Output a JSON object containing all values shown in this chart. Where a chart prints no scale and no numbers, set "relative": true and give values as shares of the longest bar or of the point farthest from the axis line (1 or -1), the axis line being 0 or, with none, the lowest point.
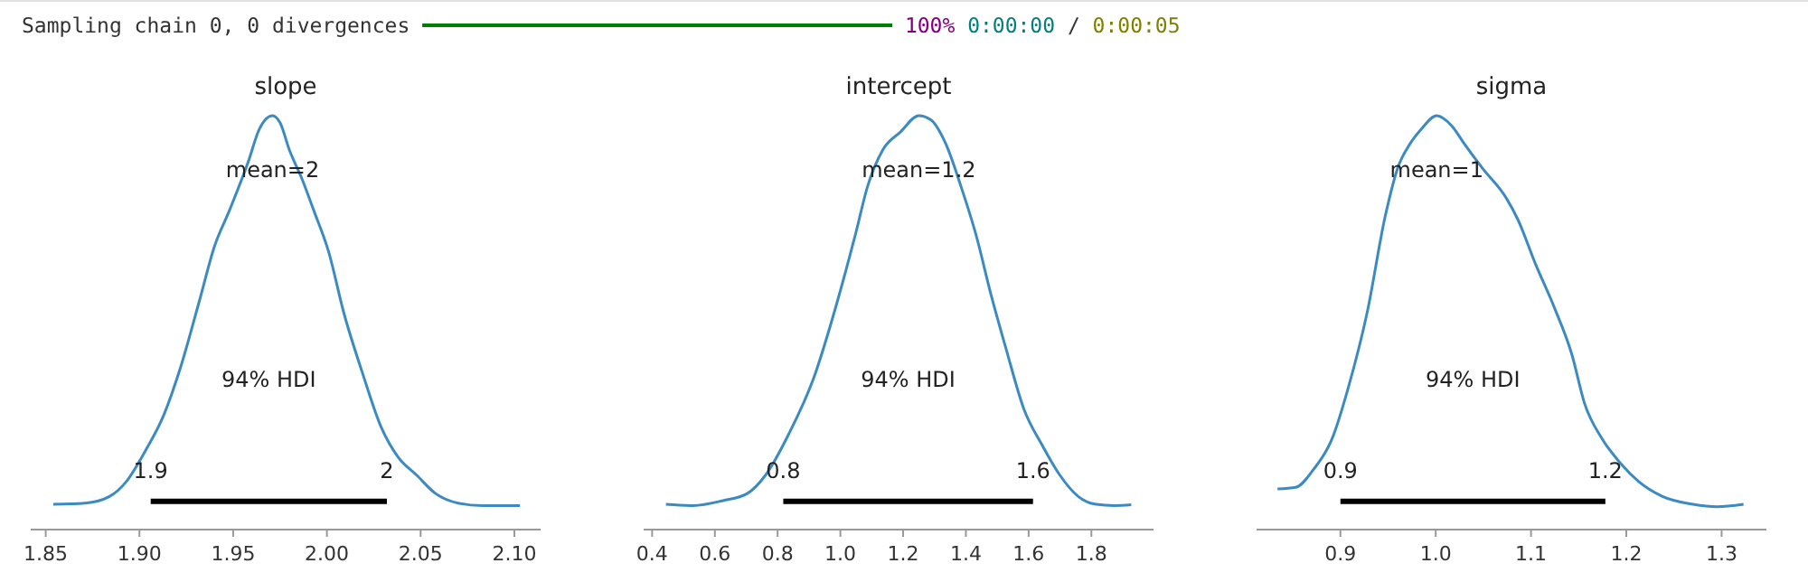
{
  "chart_data": [
    {
      "type": "other",
      "annotations": [
        "Sampling chain 0, 0 divergences",
        "100%",
        "0:00:00",
        "/",
        "0:00:05"
      ]
    },
    {
      "type": "line",
      "title": "slope",
      "relative": true,
      "xlim": [
        1.842,
        2.114
      ],
      "xticks": [
        {
          "value": 1.85,
          "label": "1.85"
        },
        {
          "value": 1.9,
          "label": "1.90"
        },
        {
          "value": 1.95,
          "label": "1.95"
        },
        {
          "value": 2.0,
          "label": "2.00"
        },
        {
          "value": 2.05,
          "label": "2.05"
        },
        {
          "value": 2.1,
          "label": "2.10"
        }
      ],
      "series": [
        {
          "color": "#3b8bc2",
          "x": [
            1.854,
            1.871,
            1.884,
            1.893,
            1.903,
            1.913,
            1.922,
            1.932,
            1.94,
            1.948,
            1.958,
            1.964,
            1.971,
            1.975,
            1.98,
            1.987,
            1.993,
            2.001,
            2.009,
            2.019,
            2.029,
            2.038,
            2.048,
            2.058,
            2.07,
            2.083,
            2.103
          ],
          "values": [
            0.061,
            0.064,
            0.08,
            0.116,
            0.189,
            0.277,
            0.393,
            0.553,
            0.684,
            0.771,
            0.888,
            0.968,
            1,
            0.983,
            0.917,
            0.844,
            0.771,
            0.67,
            0.524,
            0.378,
            0.247,
            0.175,
            0.131,
            0.087,
            0.064,
            0.058,
            0.058
          ]
        },
        {
          "color": "#000000",
          "x": [
            1.906,
            2.032
          ],
          "values": [
            0.068,
            0.068
          ]
        }
      ],
      "annotations": [
        "mean=2",
        "94% HDI",
        "1.9",
        "2"
      ]
    },
    {
      "type": "line",
      "title": "intercept",
      "relative": true,
      "xlim": [
        0.373,
        1.998
      ],
      "xticks": [
        0.4,
        0.6,
        0.8,
        {
          "value": 1.0,
          "label": "1.0"
        },
        1.2,
        1.4,
        1.6,
        1.8
      ],
      "series": [
        {
          "color": "#3b8bc2",
          "x": [
            0.444,
            0.53,
            0.626,
            0.703,
            0.761,
            0.837,
            0.914,
            0.991,
            1.048,
            1.087,
            1.135,
            1.192,
            1.25,
            1.288,
            1.336,
            1.384,
            1.432,
            1.48,
            1.528,
            1.585,
            1.643,
            1.7,
            1.758,
            1.815,
            1.873,
            1.927
          ],
          "values": [
            0.061,
            0.058,
            0.07,
            0.087,
            0.131,
            0.233,
            0.364,
            0.553,
            0.713,
            0.83,
            0.917,
            0.961,
            1,
            0.99,
            0.932,
            0.83,
            0.713,
            0.568,
            0.437,
            0.291,
            0.204,
            0.131,
            0.08,
            0.061,
            0.058,
            0.06
          ]
        },
        {
          "color": "#000000",
          "x": [
            0.818,
            1.614
          ],
          "values": [
            0.068,
            0.068
          ]
        }
      ],
      "annotations": [
        "mean=1.2",
        "94% HDI",
        "0.8",
        "1.6"
      ]
    },
    {
      "type": "line",
      "title": "sigma",
      "relative": true,
      "xlim": [
        0.812,
        1.347
      ],
      "xticks": [
        0.9,
        {
          "value": 1.0,
          "label": "1.0"
        },
        1.1,
        1.2,
        1.3
      ],
      "series": [
        {
          "color": "#3b8bc2",
          "x": [
            0.834,
            0.853,
            0.872,
            0.891,
            0.909,
            0.928,
            0.947,
            0.96,
            0.973,
            0.985,
            1.001,
            1.017,
            1.03,
            1.049,
            1.074,
            1.086,
            1.105,
            1.124,
            1.143,
            1.156,
            1.175,
            1.194,
            1.213,
            1.238,
            1.27,
            1.295,
            1.323
          ],
          "values": [
            0.098,
            0.102,
            0.146,
            0.218,
            0.349,
            0.524,
            0.757,
            0.873,
            0.932,
            0.968,
            1,
            0.975,
            0.932,
            0.873,
            0.801,
            0.75,
            0.64,
            0.539,
            0.422,
            0.306,
            0.218,
            0.16,
            0.116,
            0.08,
            0.061,
            0.055,
            0.061
          ]
        },
        {
          "color": "#000000",
          "x": [
            0.9,
            1.178
          ],
          "values": [
            0.068,
            0.068
          ]
        }
      ],
      "annotations": [
        "mean=1",
        "94% HDI",
        "0.9",
        "1.2"
      ]
    }
  ]
}
